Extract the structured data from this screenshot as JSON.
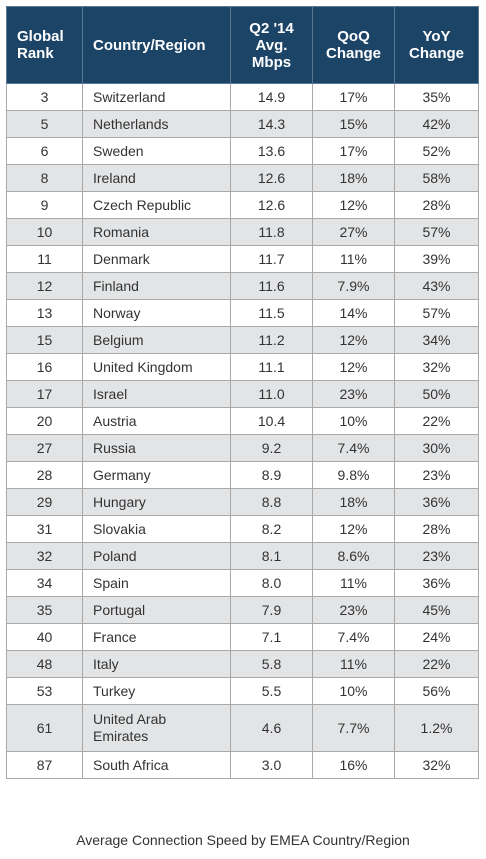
{
  "chart_data": {
    "type": "table",
    "title": "Average Connection Speed by EMEA Country/Region",
    "columns": [
      "Global Rank",
      "Country/Region",
      "Q2 '14 Avg. Mbps",
      "QoQ Change",
      "YoY Change"
    ],
    "rows": [
      [
        "3",
        "Switzerland",
        "14.9",
        "17%",
        "35%"
      ],
      [
        "5",
        "Netherlands",
        "14.3",
        "15%",
        "42%"
      ],
      [
        "6",
        "Sweden",
        "13.6",
        "17%",
        "52%"
      ],
      [
        "8",
        "Ireland",
        "12.6",
        "18%",
        "58%"
      ],
      [
        "9",
        "Czech Republic",
        "12.6",
        "12%",
        "28%"
      ],
      [
        "10",
        "Romania",
        "11.8",
        "27%",
        "57%"
      ],
      [
        "11",
        "Denmark",
        "11.7",
        "11%",
        "39%"
      ],
      [
        "12",
        "Finland",
        "11.6",
        "7.9%",
        "43%"
      ],
      [
        "13",
        "Norway",
        "11.5",
        "14%",
        "57%"
      ],
      [
        "15",
        "Belgium",
        "11.2",
        "12%",
        "34%"
      ],
      [
        "16",
        "United Kingdom",
        "11.1",
        "12%",
        "32%"
      ],
      [
        "17",
        "Israel",
        "11.0",
        "23%",
        "50%"
      ],
      [
        "20",
        "Austria",
        "10.4",
        "10%",
        "22%"
      ],
      [
        "27",
        "Russia",
        "9.2",
        "7.4%",
        "30%"
      ],
      [
        "28",
        "Germany",
        "8.9",
        "9.8%",
        "23%"
      ],
      [
        "29",
        "Hungary",
        "8.8",
        "18%",
        "36%"
      ],
      [
        "31",
        "Slovakia",
        "8.2",
        "12%",
        "28%"
      ],
      [
        "32",
        "Poland",
        "8.1",
        "8.6%",
        "23%"
      ],
      [
        "34",
        "Spain",
        "8.0",
        "11%",
        "36%"
      ],
      [
        "35",
        "Portugal",
        "7.9",
        "23%",
        "45%"
      ],
      [
        "40",
        "France",
        "7.1",
        "7.4%",
        "24%"
      ],
      [
        "48",
        "Italy",
        "5.8",
        "11%",
        "22%"
      ],
      [
        "53",
        "Turkey",
        "5.5",
        "10%",
        "56%"
      ],
      [
        "61",
        "United Arab Emirates",
        "4.6",
        "7.7%",
        "1.2%"
      ],
      [
        "87",
        "South Africa",
        "3.0",
        "16%",
        "32%"
      ]
    ],
    "colors": {
      "header_bg": "#1b4467",
      "header_text": "#ffffff",
      "stripe": "#e3e4e6"
    }
  }
}
